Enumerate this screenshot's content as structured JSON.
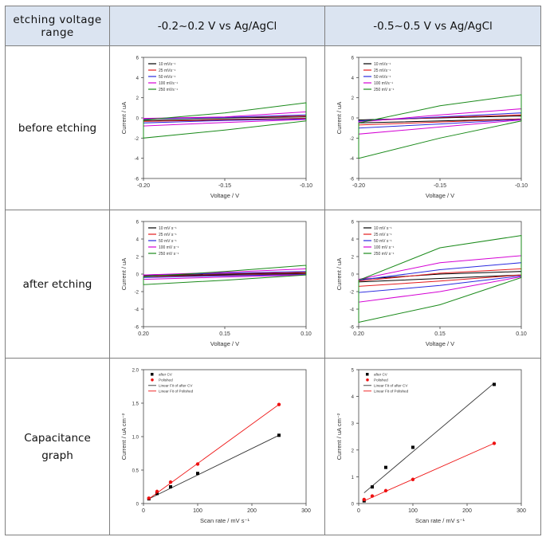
{
  "table": {
    "header": {
      "col0": "etching voltage range",
      "col0_line1": "etching voltage",
      "col0_line2": "range",
      "col1": "-0.2~0.2 V vs Ag/AgCl",
      "col2": "-0.5~0.5 V vs Ag/AgCl"
    },
    "rows": [
      {
        "label": "before etching"
      },
      {
        "label": "after etching"
      },
      {
        "label": "Capacitance graph",
        "label_line1": "Capacitance",
        "label_line2": "graph"
      }
    ]
  },
  "chart_data": [
    {
      "id": "cv-before-narrow",
      "type": "line",
      "xlabel": "Voltage / V",
      "ylabel": "Current / uA",
      "xlim": [
        -0.2,
        -0.1
      ],
      "ylim": [
        -6,
        6
      ],
      "xticks": [
        "-0.20",
        "-0.15",
        "-0.10"
      ],
      "yticks": [
        "6",
        "4",
        "2",
        "0",
        "-2",
        "-4",
        "-6"
      ],
      "legend_position": "top-left",
      "series": [
        {
          "name": "10 mVs⁻¹",
          "color": "#000000",
          "upper": [
            [
              -0.2,
              -0.1
            ],
            [
              -0.15,
              0.0
            ],
            [
              -0.1,
              0.1
            ]
          ],
          "lower": [
            [
              -0.2,
              -0.25
            ],
            [
              -0.15,
              -0.15
            ],
            [
              -0.1,
              -0.05
            ]
          ]
        },
        {
          "name": "25 mVs⁻¹",
          "color": "#e41a1c",
          "upper": [
            [
              -0.2,
              -0.1
            ],
            [
              -0.15,
              0.05
            ],
            [
              -0.1,
              0.2
            ]
          ],
          "lower": [
            [
              -0.2,
              -0.35
            ],
            [
              -0.15,
              -0.2
            ],
            [
              -0.1,
              -0.05
            ]
          ]
        },
        {
          "name": "50 mVs⁻¹",
          "color": "#2a2adf",
          "upper": [
            [
              -0.2,
              -0.1
            ],
            [
              -0.15,
              0.05
            ],
            [
              -0.1,
              0.3
            ]
          ],
          "lower": [
            [
              -0.2,
              -0.5
            ],
            [
              -0.15,
              -0.25
            ],
            [
              -0.1,
              -0.1
            ]
          ]
        },
        {
          "name": "100 mVs⁻¹",
          "color": "#d400d4",
          "upper": [
            [
              -0.2,
              -0.05
            ],
            [
              -0.15,
              0.1
            ],
            [
              -0.1,
              0.6
            ]
          ],
          "lower": [
            [
              -0.2,
              -0.8
            ],
            [
              -0.15,
              -0.45
            ],
            [
              -0.1,
              -0.15
            ]
          ]
        },
        {
          "name": "250 mVs⁻¹",
          "color": "#1a8a1a",
          "upper": [
            [
              -0.2,
              -0.2
            ],
            [
              -0.15,
              0.5
            ],
            [
              -0.1,
              1.5
            ]
          ],
          "lower": [
            [
              -0.2,
              -2.0
            ],
            [
              -0.15,
              -1.2
            ],
            [
              -0.1,
              -0.3
            ]
          ]
        }
      ]
    },
    {
      "id": "cv-before-wide",
      "type": "line",
      "xlabel": "Voltage / V",
      "ylabel": "Current / uA",
      "xlim": [
        -0.2,
        -0.1
      ],
      "ylim": [
        -6,
        6
      ],
      "xticks": [
        "-0.20",
        "-0.15",
        "-0.10"
      ],
      "yticks": [
        "6",
        "4",
        "2",
        "0",
        "-2",
        "-4",
        "-6"
      ],
      "legend_position": "top-left",
      "series": [
        {
          "name": "10 mVs⁻¹",
          "color": "#000000",
          "upper": [
            [
              -0.2,
              -0.2
            ],
            [
              -0.15,
              0.0
            ],
            [
              -0.1,
              0.2
            ]
          ],
          "lower": [
            [
              -0.2,
              -0.5
            ],
            [
              -0.15,
              -0.3
            ],
            [
              -0.1,
              -0.1
            ]
          ]
        },
        {
          "name": "25 mVs⁻¹",
          "color": "#e41a1c",
          "upper": [
            [
              -0.2,
              -0.3
            ],
            [
              -0.15,
              0.05
            ],
            [
              -0.1,
              0.3
            ]
          ],
          "lower": [
            [
              -0.2,
              -0.7
            ],
            [
              -0.15,
              -0.4
            ],
            [
              -0.1,
              -0.1
            ]
          ]
        },
        {
          "name": "50 mVs⁻¹",
          "color": "#2a2adf",
          "upper": [
            [
              -0.2,
              -0.3
            ],
            [
              -0.15,
              0.1
            ],
            [
              -0.1,
              0.5
            ]
          ],
          "lower": [
            [
              -0.2,
              -1.0
            ],
            [
              -0.15,
              -0.6
            ],
            [
              -0.1,
              -0.15
            ]
          ]
        },
        {
          "name": "100 mVs⁻¹",
          "color": "#d400d4",
          "upper": [
            [
              -0.2,
              -0.4
            ],
            [
              -0.15,
              0.3
            ],
            [
              -0.1,
              0.9
            ]
          ],
          "lower": [
            [
              -0.2,
              -1.6
            ],
            [
              -0.15,
              -0.9
            ],
            [
              -0.1,
              -0.2
            ]
          ]
        },
        {
          "name": "250 mV s⁻¹",
          "color": "#1a8a1a",
          "upper": [
            [
              -0.2,
              -0.5
            ],
            [
              -0.15,
              1.2
            ],
            [
              -0.1,
              2.3
            ]
          ],
          "lower": [
            [
              -0.2,
              -4.0
            ],
            [
              -0.15,
              -2.0
            ],
            [
              -0.1,
              -0.3
            ]
          ]
        }
      ]
    },
    {
      "id": "cv-after-narrow",
      "type": "line",
      "xlabel": "Voltage / V",
      "ylabel": "Current / uA",
      "xlim": [
        0.2,
        0.1
      ],
      "ylim": [
        -6,
        6
      ],
      "xticks": [
        "0.20",
        "0.15",
        "0.10"
      ],
      "yticks": [
        "6",
        "4",
        "2",
        "0",
        "-2",
        "-4",
        "-6"
      ],
      "legend_position": "top-left",
      "series": [
        {
          "name": "10 mV s⁻¹",
          "color": "#000000",
          "upper": [
            [
              0.2,
              -0.1
            ],
            [
              0.15,
              0.0
            ],
            [
              0.1,
              0.1
            ]
          ],
          "lower": [
            [
              0.2,
              -0.2
            ],
            [
              0.15,
              -0.1
            ],
            [
              0.1,
              0.0
            ]
          ]
        },
        {
          "name": "25 mV s⁻¹",
          "color": "#e41a1c",
          "upper": [
            [
              0.2,
              -0.1
            ],
            [
              0.15,
              0.05
            ],
            [
              0.1,
              0.2
            ]
          ],
          "lower": [
            [
              0.2,
              -0.3
            ],
            [
              0.15,
              -0.15
            ],
            [
              0.1,
              0.0
            ]
          ]
        },
        {
          "name": "50 mV s⁻¹",
          "color": "#2a2adf",
          "upper": [
            [
              0.2,
              -0.1
            ],
            [
              0.15,
              0.1
            ],
            [
              0.1,
              0.3
            ]
          ],
          "lower": [
            [
              0.2,
              -0.4
            ],
            [
              0.15,
              -0.2
            ],
            [
              0.1,
              -0.05
            ]
          ]
        },
        {
          "name": "100 mV s⁻¹",
          "color": "#d400d4",
          "upper": [
            [
              0.2,
              -0.1
            ],
            [
              0.15,
              0.2
            ],
            [
              0.1,
              0.6
            ]
          ],
          "lower": [
            [
              0.2,
              -0.6
            ],
            [
              0.15,
              -0.35
            ],
            [
              0.1,
              -0.1
            ]
          ]
        },
        {
          "name": "250 mV s⁻¹",
          "color": "#1a8a1a",
          "upper": [
            [
              0.2,
              -0.3
            ],
            [
              0.15,
              0.3
            ],
            [
              0.1,
              1.0
            ]
          ],
          "lower": [
            [
              0.2,
              -1.2
            ],
            [
              0.15,
              -0.7
            ],
            [
              0.1,
              -0.1
            ]
          ]
        }
      ]
    },
    {
      "id": "cv-after-wide",
      "type": "line",
      "xlabel": "Voltage / V",
      "ylabel": "Current / uA",
      "xlim": [
        0.2,
        0.1
      ],
      "ylim": [
        -6,
        6
      ],
      "xticks": [
        "0.20",
        "0.15",
        "0.10"
      ],
      "yticks": [
        "6",
        "4",
        "2",
        "0",
        "-2",
        "-4",
        "-6"
      ],
      "legend_position": "top-left",
      "series": [
        {
          "name": "10 mV s⁻¹",
          "color": "#000000",
          "upper": [
            [
              0.2,
              -0.6
            ],
            [
              0.15,
              0.0
            ],
            [
              0.1,
              0.3
            ]
          ],
          "lower": [
            [
              0.2,
              -0.9
            ],
            [
              0.15,
              -0.5
            ],
            [
              0.1,
              -0.1
            ]
          ]
        },
        {
          "name": "25 mV s⁻¹",
          "color": "#e41a1c",
          "upper": [
            [
              0.2,
              -0.8
            ],
            [
              0.15,
              0.1
            ],
            [
              0.1,
              0.6
            ]
          ],
          "lower": [
            [
              0.2,
              -1.4
            ],
            [
              0.15,
              -0.8
            ],
            [
              0.1,
              -0.1
            ]
          ]
        },
        {
          "name": "50 mV s⁻¹",
          "color": "#2a2adf",
          "upper": [
            [
              0.2,
              -0.7
            ],
            [
              0.15,
              0.5
            ],
            [
              0.1,
              1.3
            ]
          ],
          "lower": [
            [
              0.2,
              -2.1
            ],
            [
              0.15,
              -1.3
            ],
            [
              0.1,
              -0.2
            ]
          ]
        },
        {
          "name": "100 mV s⁻¹",
          "color": "#d400d4",
          "upper": [
            [
              0.2,
              -0.6
            ],
            [
              0.15,
              1.3
            ],
            [
              0.1,
              2.1
            ]
          ],
          "lower": [
            [
              0.2,
              -3.2
            ],
            [
              0.15,
              -2.0
            ],
            [
              0.1,
              -0.3
            ]
          ]
        },
        {
          "name": "250 mV s⁻¹",
          "color": "#1a8a1a",
          "upper": [
            [
              0.2,
              -0.7
            ],
            [
              0.15,
              3.0
            ],
            [
              0.1,
              4.4
            ]
          ],
          "lower": [
            [
              0.2,
              -5.5
            ],
            [
              0.15,
              -3.5
            ],
            [
              0.1,
              -0.4
            ]
          ]
        }
      ]
    },
    {
      "id": "capacitance-narrow",
      "type": "scatter",
      "xlabel": "Scan rate / mV s⁻¹",
      "ylabel": "Current / uA cm⁻²",
      "xlim": [
        0,
        300
      ],
      "ylim": [
        0,
        2.0
      ],
      "xticks": [
        "0",
        "100",
        "200",
        "300"
      ],
      "yticks": [
        "0",
        "0.5",
        "1.0",
        "1.5",
        "2.0"
      ],
      "legend_position": "top-left",
      "legend": [
        "after CV",
        "Polished",
        "Linear Fit of after CV",
        "Linear Fit of Polished"
      ],
      "series": [
        {
          "name": "after CV",
          "color": "#000000",
          "marker": "square",
          "x": [
            10,
            25,
            50,
            100,
            250
          ],
          "y": [
            0.07,
            0.15,
            0.25,
            0.45,
            1.02
          ],
          "fit": [
            [
              10,
              0.07
            ],
            [
              250,
              1.02
            ]
          ]
        },
        {
          "name": "Polished",
          "color": "#ee1111",
          "marker": "circle",
          "x": [
            10,
            25,
            50,
            100,
            250
          ],
          "y": [
            0.08,
            0.18,
            0.32,
            0.59,
            1.48
          ],
          "fit": [
            [
              10,
              0.07
            ],
            [
              250,
              1.48
            ]
          ]
        }
      ]
    },
    {
      "id": "capacitance-wide",
      "type": "scatter",
      "xlabel": "Scan rate / mV s⁻¹",
      "ylabel": "Current / uA cm⁻²",
      "xlim": [
        0,
        300
      ],
      "ylim": [
        0,
        5
      ],
      "xticks": [
        "0",
        "100",
        "200",
        "300"
      ],
      "yticks": [
        "0",
        "1",
        "2",
        "3",
        "4",
        "5"
      ],
      "legend_position": "top-left",
      "legend": [
        "after CV",
        "Polished",
        "Linear Fit of after CV",
        "Linear Fit of Polished"
      ],
      "series": [
        {
          "name": "after CV",
          "color": "#000000",
          "marker": "square",
          "x": [
            10,
            25,
            50,
            100,
            250
          ],
          "y": [
            0.1,
            0.62,
            1.35,
            2.1,
            4.45
          ],
          "fit": [
            [
              10,
              0.4
            ],
            [
              250,
              4.5
            ]
          ]
        },
        {
          "name": "Polished",
          "color": "#ee1111",
          "marker": "circle",
          "x": [
            10,
            25,
            50,
            100,
            250
          ],
          "y": [
            0.15,
            0.28,
            0.48,
            0.9,
            2.25
          ],
          "fit": [
            [
              10,
              0.1
            ],
            [
              250,
              2.25
            ]
          ]
        }
      ]
    }
  ]
}
